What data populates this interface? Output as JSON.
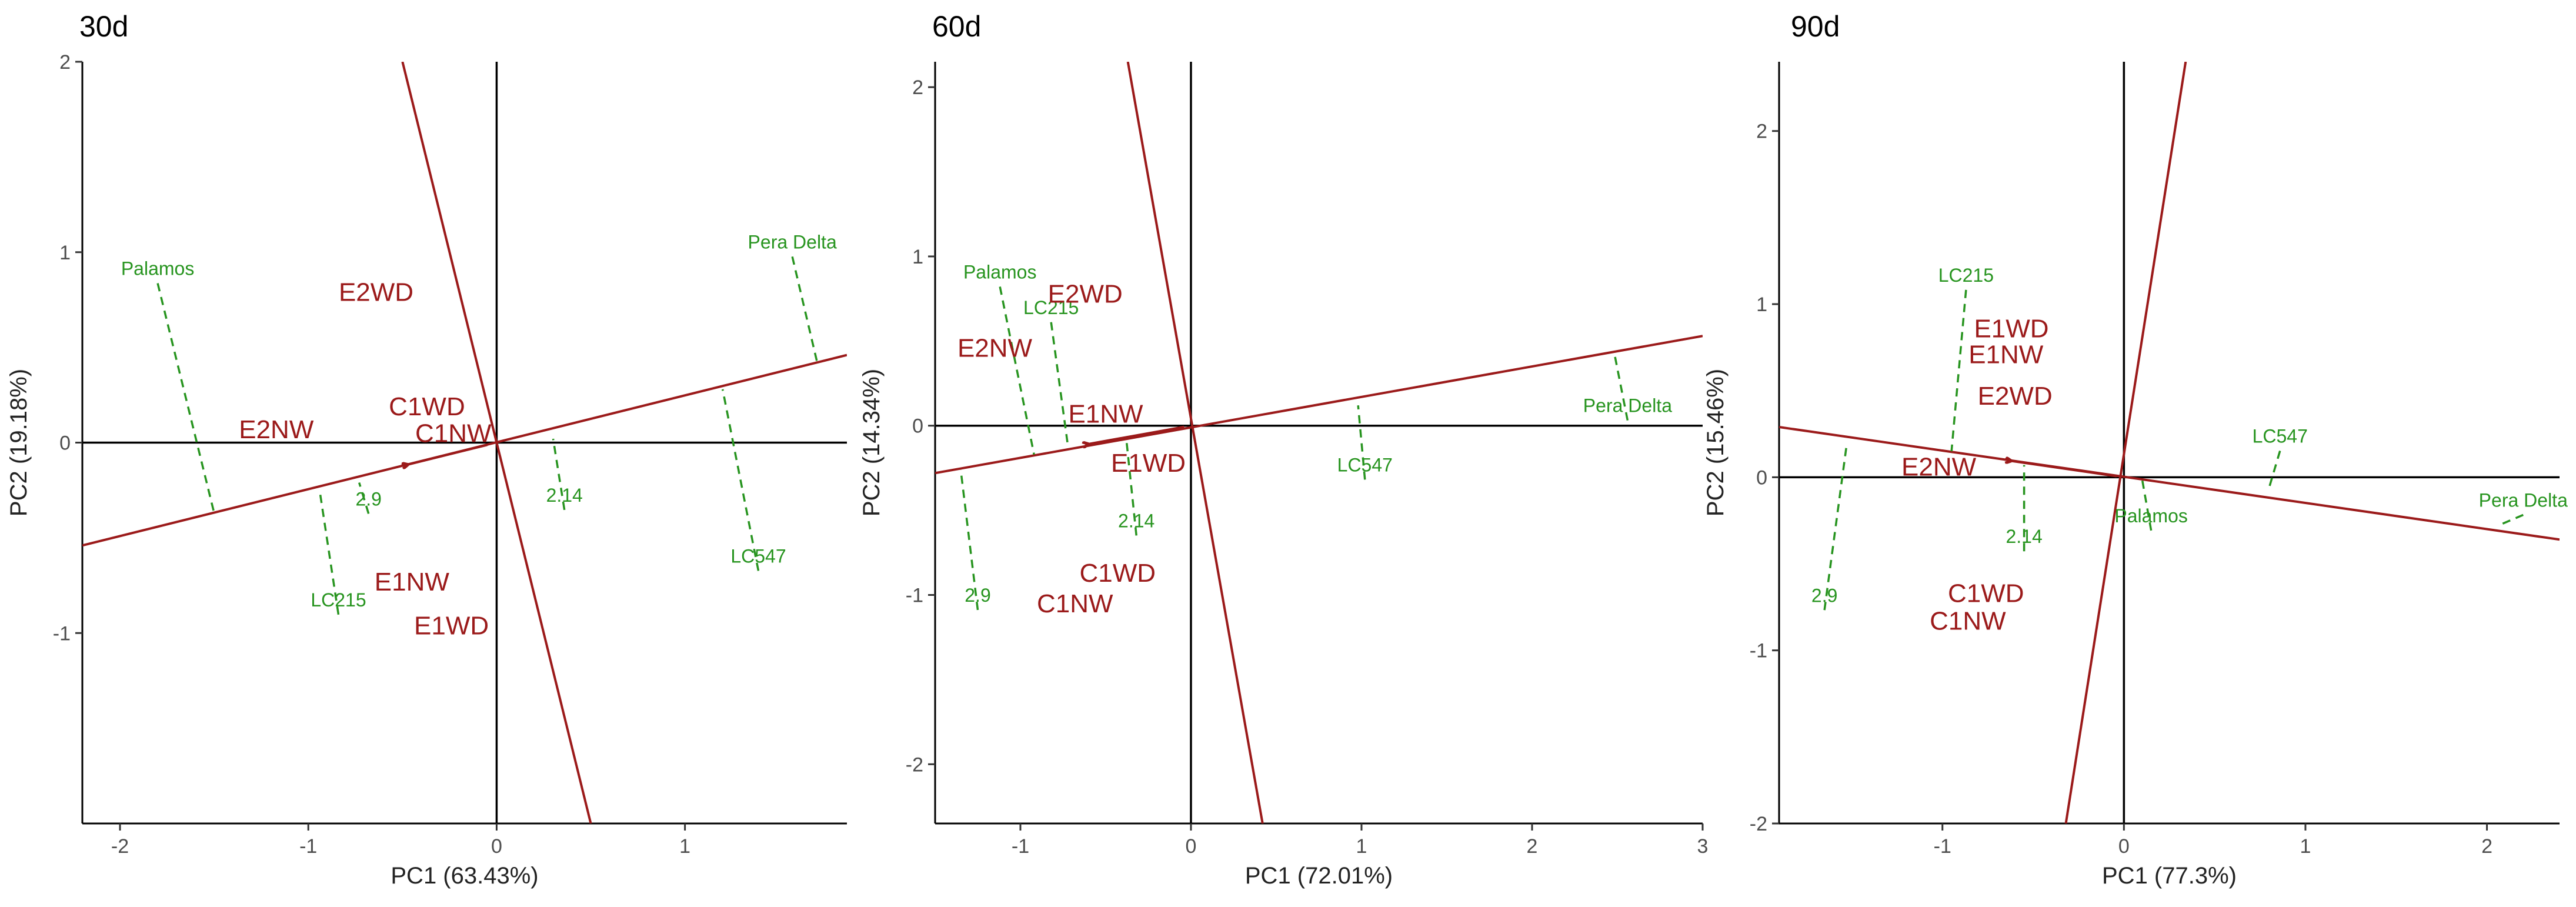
{
  "figure": {
    "colors": {
      "environment": "#9b1a1a",
      "genotype": "#27941f",
      "axis": "#000000",
      "tick_text": "#4d4d4d"
    }
  },
  "chart_data": [
    {
      "type": "scatter",
      "title": "30d",
      "xlabel": "PC1 (63.43%)",
      "ylabel": "PC2 (19.18%)",
      "xlim": [
        -2.2,
        1.86
      ],
      "ylim": [
        -2.0,
        2.0
      ],
      "xticks": [
        -2,
        -1,
        0,
        1
      ],
      "yticks": [
        -1,
        0,
        1,
        2
      ],
      "samples": [
        {
          "label": "E2WD",
          "x": -0.64,
          "y": 0.79
        },
        {
          "label": "E2NW",
          "x": -1.17,
          "y": 0.07
        },
        {
          "label": "C1WD",
          "x": -0.37,
          "y": 0.19
        },
        {
          "label": "C1NW",
          "x": -0.23,
          "y": 0.05
        },
        {
          "label": "E1NW",
          "x": -0.45,
          "y": -0.73
        },
        {
          "label": "E1WD",
          "x": -0.24,
          "y": -0.96
        }
      ],
      "genotypes": [
        {
          "label": "Palamos",
          "x": -1.8,
          "y": 0.88,
          "fx": -1.5,
          "fy": -0.37
        },
        {
          "label": "Pera Delta",
          "x": 1.57,
          "y": 1.02,
          "fx": 1.7,
          "fy": 0.43
        },
        {
          "label": "LC547",
          "x": 1.39,
          "y": -0.63,
          "fx": 1.2,
          "fy": 0.28
        },
        {
          "label": "2.14",
          "x": 0.36,
          "y": -0.31,
          "fx": 0.3,
          "fy": 0.02
        },
        {
          "label": "2.9",
          "x": -0.68,
          "y": -0.33,
          "fx": -0.73,
          "fy": -0.21
        },
        {
          "label": "LC215",
          "x": -0.84,
          "y": -0.86,
          "fx": -0.94,
          "fy": -0.25
        }
      ],
      "axis_lines": [
        {
          "x1": -2.2,
          "y1": -0.54,
          "x2": 1.86,
          "y2": 0.46
        },
        {
          "x1": -0.5,
          "y1": 2.0,
          "x2": 0.5,
          "y2": -2.0
        }
      ],
      "arrow": {
        "x1": -0.05,
        "y1": -0.012,
        "x2": -0.47,
        "y2": -0.115
      }
    },
    {
      "type": "scatter",
      "title": "60d",
      "xlabel": "PC1 (72.01%)",
      "ylabel": "PC2 (14.34%)",
      "xlim": [
        -1.5,
        3.0
      ],
      "ylim": [
        -2.35,
        2.15
      ],
      "xticks": [
        -1,
        0,
        1,
        2,
        3
      ],
      "yticks": [
        -2,
        -1,
        0,
        1,
        2
      ],
      "samples": [
        {
          "label": "E2WD",
          "x": -0.62,
          "y": 0.78
        },
        {
          "label": "E2NW",
          "x": -1.15,
          "y": 0.46
        },
        {
          "label": "E1NW",
          "x": -0.5,
          "y": 0.07
        },
        {
          "label": "E1WD",
          "x": -0.25,
          "y": -0.22
        },
        {
          "label": "C1WD",
          "x": -0.43,
          "y": -0.87
        },
        {
          "label": "C1NW",
          "x": -0.68,
          "y": -1.05
        }
      ],
      "genotypes": [
        {
          "label": "Palamos",
          "x": -1.12,
          "y": 0.87,
          "fx": -0.92,
          "fy": -0.17
        },
        {
          "label": "LC215",
          "x": -0.82,
          "y": 0.66,
          "fx": -0.72,
          "fy": -0.13
        },
        {
          "label": "Pera Delta",
          "x": 2.56,
          "y": 0.08,
          "fx": 2.48,
          "fy": 0.44
        },
        {
          "label": "LC547",
          "x": 1.02,
          "y": -0.27,
          "fx": 0.98,
          "fy": 0.12
        },
        {
          "label": "2.14",
          "x": -0.32,
          "y": -0.6,
          "fx": -0.38,
          "fy": -0.07
        },
        {
          "label": "2.9",
          "x": -1.25,
          "y": -1.04,
          "fx": -1.35,
          "fy": -0.26
        }
      ],
      "axis_lines": [
        {
          "x1": -1.5,
          "y1": -0.28,
          "x2": 3.0,
          "y2": 0.53
        },
        {
          "x1": -0.37,
          "y1": 2.15,
          "x2": 0.42,
          "y2": -2.35
        }
      ],
      "arrow": {
        "x1": -0.04,
        "y1": -0.007,
        "x2": -0.6,
        "y2": -0.108
      }
    },
    {
      "type": "scatter",
      "title": "90d",
      "xlabel": "PC1 (77.3%)",
      "ylabel": "PC2 (15.46%)",
      "xlim": [
        -1.9,
        2.4
      ],
      "ylim": [
        -2.0,
        2.4
      ],
      "xticks": [
        -1,
        0,
        1,
        2
      ],
      "yticks": [
        -2,
        -1,
        0,
        1,
        2
      ],
      "samples": [
        {
          "label": "E1WD",
          "x": -0.62,
          "y": 0.86
        },
        {
          "label": "E1NW",
          "x": -0.65,
          "y": 0.71
        },
        {
          "label": "E2WD",
          "x": -0.6,
          "y": 0.47
        },
        {
          "label": "E2NW",
          "x": -1.02,
          "y": 0.06
        },
        {
          "label": "C1WD",
          "x": -0.76,
          "y": -0.67
        },
        {
          "label": "C1NW",
          "x": -0.86,
          "y": -0.83
        }
      ],
      "genotypes": [
        {
          "label": "LC215",
          "x": -0.87,
          "y": 1.13,
          "fx": -0.95,
          "fy": 0.15
        },
        {
          "label": "LC547",
          "x": 0.86,
          "y": 0.2,
          "fx": 0.8,
          "fy": -0.06
        },
        {
          "label": "Pera Delta",
          "x": 2.2,
          "y": -0.17,
          "fx": 2.06,
          "fy": -0.28
        },
        {
          "label": "Palamos",
          "x": 0.15,
          "y": -0.26,
          "fx": 0.1,
          "fy": -0.01
        },
        {
          "label": "2.14",
          "x": -0.55,
          "y": -0.38,
          "fx": -0.55,
          "fy": 0.07
        },
        {
          "label": "2.9",
          "x": -1.65,
          "y": -0.72,
          "fx": -1.53,
          "fy": 0.17
        }
      ],
      "axis_lines": [
        {
          "x1": -1.9,
          "y1": 0.29,
          "x2": 2.4,
          "y2": -0.36
        },
        {
          "x1": -0.32,
          "y1": -2.0,
          "x2": 0.34,
          "y2": 2.4
        }
      ],
      "arrow": {
        "x1": -0.04,
        "y1": 0.006,
        "x2": -0.62,
        "y2": 0.094
      }
    }
  ]
}
